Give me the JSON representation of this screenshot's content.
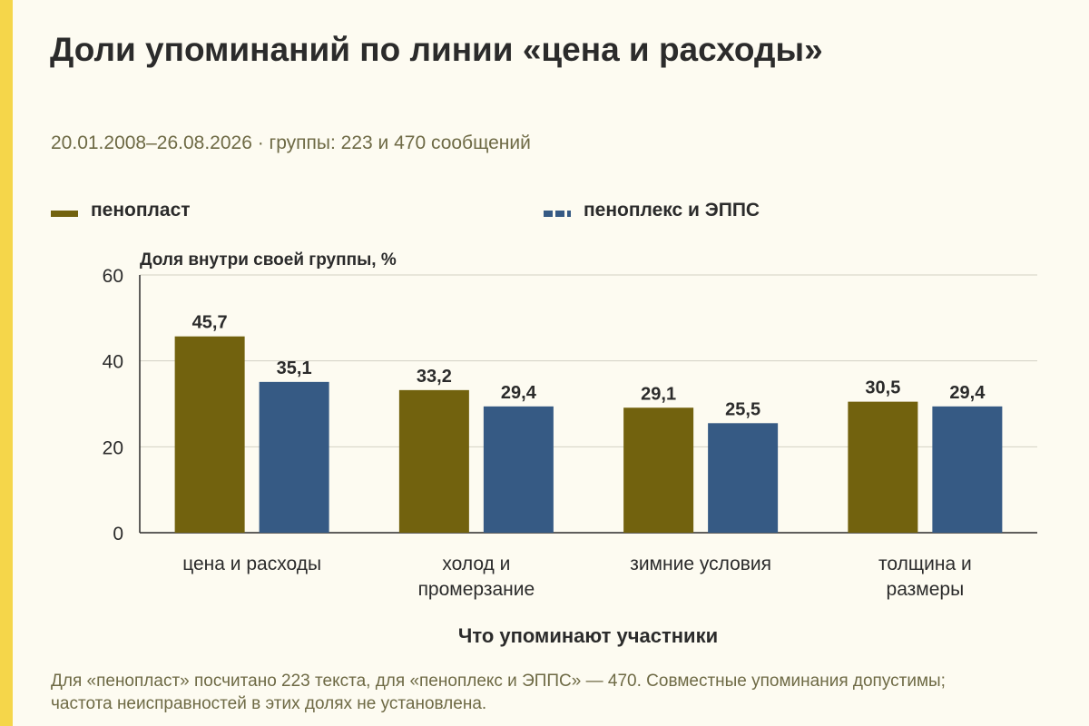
{
  "header": {
    "title": "Доли упоминаний по линии «цена и расходы»",
    "subtitle": "20.01.2008–26.08.2026 · группы: 223 и 470 сообщений"
  },
  "legend": [
    {
      "label": "пенопласт",
      "color": "#72620e",
      "style": "solid"
    },
    {
      "label": "пеноплекс и ЭППС",
      "color": "#365a84",
      "style": "dashed"
    }
  ],
  "footnote": "Для «пенопласт» посчитано 223 текста, для «пеноплекс и ЭППС» — 470. Совместные упоминания допустимы; частота неисправностей в этих долях не установлена.",
  "chart_data": {
    "type": "bar",
    "ylabel": "Доля внутри своей группы, %",
    "xlabel": "Что упоминают участники",
    "ylim": [
      0,
      60
    ],
    "yticks": [
      0,
      20,
      40,
      60
    ],
    "grid": true,
    "legend_position": "top",
    "categories": [
      [
        "цена и расходы"
      ],
      [
        "холод и",
        "промерзание"
      ],
      [
        "зимние условия"
      ],
      [
        "толщина и",
        "размеры"
      ]
    ],
    "series": [
      {
        "name": "пенопласт",
        "color": "#72620e",
        "values": [
          45.7,
          33.2,
          29.1,
          30.5
        ],
        "labels": [
          "45,7",
          "33,2",
          "29,1",
          "30,5"
        ]
      },
      {
        "name": "пеноплекс и ЭППС",
        "color": "#365a84",
        "values": [
          35.1,
          29.4,
          25.5,
          29.4
        ],
        "labels": [
          "35,1",
          "29,4",
          "25,5",
          "29,4"
        ]
      }
    ]
  }
}
